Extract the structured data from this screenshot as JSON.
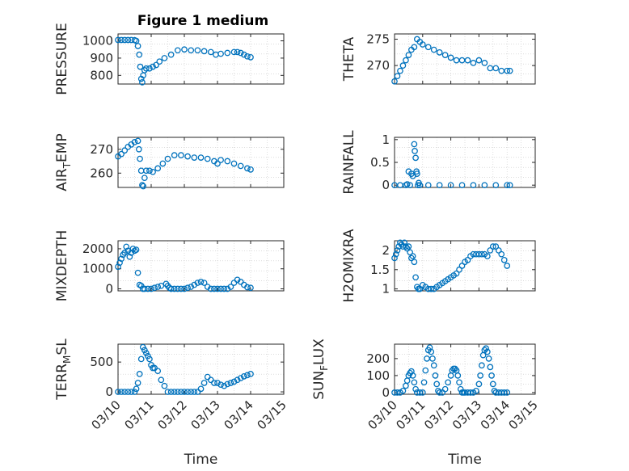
{
  "figure": {
    "title": "Figure 1 medium",
    "marker_color": "#0072bd",
    "axis_color": "#262626",
    "grid_color": "#c8c8c8"
  },
  "chart_data": [
    {
      "id": "pressure",
      "type": "scatter",
      "title": "Figure 1 medium",
      "ylabel": "PRESSURE",
      "ylabel_main": "PRESSURE",
      "ylabel_sub": "",
      "ylabel_tail": "",
      "xlabel": "",
      "xlim": [
        0,
        5
      ],
      "ylim": [
        750,
        1040
      ],
      "xticks": [
        0,
        1,
        2,
        3,
        4,
        5
      ],
      "xticklabels": [
        "",
        "",
        "",
        "",
        "",
        ""
      ],
      "yticks": [
        800,
        900,
        1000
      ],
      "yticklabels": [
        "800",
        "900",
        "1000"
      ],
      "grid": "minor-dotted",
      "marker": "open-circle",
      "series": [
        {
          "x": [
            0.0,
            0.1,
            0.2,
            0.3,
            0.4,
            0.5,
            0.55,
            0.6,
            0.64,
            0.67,
            0.7,
            0.73,
            0.76,
            0.8,
            0.85,
            0.95,
            1.05,
            1.15,
            1.25,
            1.4,
            1.6,
            1.8,
            2.0,
            2.2,
            2.4,
            2.6,
            2.8,
            2.95,
            3.1,
            3.3,
            3.5,
            3.6,
            3.7,
            3.8,
            3.9,
            4.0
          ],
          "y": [
            1005,
            1005,
            1005,
            1005,
            1005,
            1004,
            1000,
            970,
            920,
            850,
            780,
            760,
            800,
            830,
            840,
            840,
            850,
            860,
            880,
            900,
            920,
            945,
            950,
            945,
            945,
            940,
            935,
            920,
            925,
            930,
            935,
            935,
            930,
            920,
            910,
            905
          ]
        }
      ]
    },
    {
      "id": "theta",
      "type": "scatter",
      "ylabel": "THETA",
      "ylabel_main": "THETA",
      "ylabel_sub": "",
      "ylabel_tail": "",
      "xlabel": "",
      "xlim": [
        0,
        5
      ],
      "ylim": [
        266.5,
        276
      ],
      "xticks": [
        0,
        1,
        2,
        3,
        4,
        5
      ],
      "xticklabels": [
        "",
        "",
        "",
        "",
        "",
        ""
      ],
      "yticks": [
        270,
        275
      ],
      "yticklabels": [
        "270",
        "275"
      ],
      "grid": "minor-dotted",
      "marker": "open-circle",
      "series": [
        {
          "x": [
            0.0,
            0.1,
            0.2,
            0.3,
            0.4,
            0.5,
            0.6,
            0.7,
            0.8,
            0.9,
            1.0,
            1.2,
            1.4,
            1.6,
            1.8,
            2.0,
            2.2,
            2.4,
            2.6,
            2.8,
            3.0,
            3.2,
            3.4,
            3.6,
            3.8,
            4.0,
            4.1
          ],
          "y": [
            267,
            268,
            269,
            270,
            271,
            272,
            273,
            273.5,
            275,
            274.5,
            274,
            273.5,
            273,
            272.5,
            272,
            271.5,
            271,
            271,
            271,
            270.5,
            271,
            270.5,
            269.5,
            269.5,
            269,
            269,
            269
          ]
        }
      ]
    },
    {
      "id": "air_temp",
      "type": "scatter",
      "ylabel": "AIR_TEMP",
      "ylabel_main": "AIR",
      "ylabel_sub": "T",
      "ylabel_tail": "EMP",
      "xlabel": "",
      "xlim": [
        0,
        5
      ],
      "ylim": [
        254,
        275
      ],
      "xticks": [
        0,
        1,
        2,
        3,
        4,
        5
      ],
      "xticklabels": [
        "",
        "",
        "",
        "",
        "",
        ""
      ],
      "yticks": [
        260,
        270
      ],
      "yticklabels": [
        "260",
        "270"
      ],
      "grid": "minor-dotted",
      "marker": "open-circle",
      "series": [
        {
          "x": [
            0.0,
            0.1,
            0.2,
            0.3,
            0.4,
            0.5,
            0.6,
            0.63,
            0.66,
            0.7,
            0.73,
            0.76,
            0.8,
            0.85,
            0.95,
            1.05,
            1.2,
            1.35,
            1.5,
            1.7,
            1.9,
            2.1,
            2.3,
            2.5,
            2.7,
            2.9,
            3.0,
            3.1,
            3.3,
            3.5,
            3.7,
            3.9,
            4.0
          ],
          "y": [
            267,
            268,
            269.5,
            271,
            272,
            273,
            273.5,
            270,
            266,
            261,
            255,
            254.5,
            258,
            261,
            261,
            260.5,
            262,
            264,
            266,
            267.5,
            267.5,
            267,
            266.5,
            266.5,
            266,
            265,
            264,
            265.5,
            265,
            264,
            263,
            262,
            261.5
          ]
        }
      ]
    },
    {
      "id": "rainfall",
      "type": "scatter",
      "ylabel": "RAINFALL",
      "ylabel_main": "RAINFALL",
      "ylabel_sub": "",
      "ylabel_tail": "",
      "xlabel": "",
      "xlim": [
        0,
        5
      ],
      "ylim": [
        -0.05,
        1.05
      ],
      "xticks": [
        0,
        1,
        2,
        3,
        4,
        5
      ],
      "xticklabels": [
        "",
        "",
        "",
        "",
        "",
        ""
      ],
      "yticks": [
        0,
        0.5,
        1
      ],
      "yticklabels": [
        "0",
        "0.5",
        "1"
      ],
      "grid": "minor-dotted",
      "marker": "open-circle",
      "series": [
        {
          "x": [
            0.0,
            0.2,
            0.4,
            0.45,
            0.5,
            0.55,
            0.6,
            0.65,
            0.7,
            0.72,
            0.75,
            0.78,
            0.8,
            0.83,
            0.86,
            0.9,
            1.2,
            1.6,
            2.0,
            2.4,
            2.8,
            3.2,
            3.6,
            4.0,
            4.1
          ],
          "y": [
            0,
            0,
            0,
            0.02,
            0.3,
            0,
            0.25,
            0.2,
            0.9,
            0.75,
            0.6,
            0.3,
            0.25,
            0,
            0.05,
            0,
            0,
            0,
            0,
            0,
            0,
            0,
            0,
            0,
            0
          ]
        }
      ]
    },
    {
      "id": "mixdepth",
      "type": "scatter",
      "ylabel": "MIXDEPTH",
      "ylabel_main": "MIXDEPTH",
      "ylabel_sub": "",
      "ylabel_tail": "",
      "xlabel": "",
      "xlim": [
        0,
        5
      ],
      "ylim": [
        -100,
        2400
      ],
      "xticks": [
        0,
        1,
        2,
        3,
        4,
        5
      ],
      "xticklabels": [
        "",
        "",
        "",
        "",
        "",
        ""
      ],
      "yticks": [
        0,
        1000,
        2000
      ],
      "yticklabels": [
        "0",
        "1000",
        "2000"
      ],
      "grid": "minor-dotted",
      "marker": "open-circle",
      "series": [
        {
          "x": [
            0.0,
            0.05,
            0.1,
            0.15,
            0.2,
            0.25,
            0.3,
            0.35,
            0.4,
            0.45,
            0.5,
            0.55,
            0.6,
            0.65,
            0.7,
            0.75,
            0.8,
            0.9,
            1.0,
            1.1,
            1.2,
            1.3,
            1.45,
            1.5,
            1.55,
            1.6,
            1.7,
            1.8,
            1.9,
            2.0,
            2.1,
            2.2,
            2.3,
            2.4,
            2.5,
            2.6,
            2.7,
            2.8,
            2.9,
            3.0,
            3.1,
            3.2,
            3.3,
            3.4,
            3.5,
            3.6,
            3.7,
            3.8,
            3.9,
            4.0
          ],
          "y": [
            1100,
            1300,
            1500,
            1700,
            1800,
            2100,
            1900,
            1600,
            1800,
            2000,
            1900,
            1950,
            800,
            200,
            150,
            0,
            0,
            0,
            0,
            50,
            100,
            150,
            250,
            150,
            50,
            0,
            0,
            0,
            0,
            0,
            50,
            100,
            200,
            300,
            350,
            300,
            100,
            0,
            0,
            0,
            0,
            0,
            0,
            100,
            300,
            450,
            350,
            200,
            80,
            50
          ]
        }
      ]
    },
    {
      "id": "h2omixra",
      "type": "scatter",
      "ylabel": "H2OMIXRA",
      "ylabel_main": "H2OMIXRA",
      "ylabel_sub": "",
      "ylabel_tail": "",
      "xlabel": "",
      "xlim": [
        0,
        5
      ],
      "ylim": [
        0.95,
        2.25
      ],
      "xticks": [
        0,
        1,
        2,
        3,
        4,
        5
      ],
      "xticklabels": [
        "",
        "",
        "",
        "",
        "",
        ""
      ],
      "yticks": [
        1,
        1.5,
        2
      ],
      "yticklabels": [
        "1",
        "1.5",
        "2"
      ],
      "grid": "minor-dotted",
      "marker": "open-circle",
      "series": [
        {
          "x": [
            0.0,
            0.05,
            0.1,
            0.15,
            0.2,
            0.25,
            0.3,
            0.35,
            0.4,
            0.45,
            0.5,
            0.55,
            0.6,
            0.65,
            0.7,
            0.75,
            0.8,
            0.85,
            0.9,
            1.0,
            1.1,
            1.2,
            1.3,
            1.4,
            1.5,
            1.6,
            1.7,
            1.8,
            1.9,
            2.0,
            2.1,
            2.2,
            2.3,
            2.4,
            2.5,
            2.6,
            2.7,
            2.8,
            2.9,
            3.0,
            3.1,
            3.2,
            3.3,
            3.4,
            3.5,
            3.6,
            3.7,
            3.8,
            3.9,
            4.0
          ],
          "y": [
            1.8,
            1.9,
            2.0,
            2.1,
            2.2,
            2.15,
            2.1,
            2.2,
            2.1,
            2.05,
            2.1,
            1.95,
            1.8,
            1.85,
            1.7,
            1.3,
            1.05,
            1.0,
            1.0,
            1.1,
            1.05,
            1.0,
            1.0,
            1.0,
            1.05,
            1.1,
            1.15,
            1.2,
            1.25,
            1.3,
            1.35,
            1.4,
            1.5,
            1.6,
            1.7,
            1.75,
            1.85,
            1.9,
            1.9,
            1.9,
            1.9,
            1.9,
            1.85,
            2.0,
            2.1,
            2.1,
            2.0,
            1.9,
            1.75,
            1.6
          ]
        }
      ]
    },
    {
      "id": "terr_msl",
      "type": "scatter",
      "ylabel": "TERR_MSL",
      "ylabel_main": "TERR",
      "ylabel_sub": "M",
      "ylabel_tail": "SL",
      "xlabel": "Time",
      "xlim": [
        0,
        5
      ],
      "ylim": [
        -40,
        800
      ],
      "xticks": [
        0,
        1,
        2,
        3,
        4,
        5
      ],
      "xticklabels": [
        "03/10",
        "03/11",
        "03/12",
        "03/13",
        "03/14",
        "03/15"
      ],
      "yticks": [
        0,
        500
      ],
      "yticklabels": [
        "0",
        "500"
      ],
      "grid": "minor-dotted",
      "marker": "open-circle",
      "series": [
        {
          "x": [
            0.0,
            0.1,
            0.2,
            0.3,
            0.4,
            0.5,
            0.55,
            0.6,
            0.65,
            0.7,
            0.75,
            0.8,
            0.85,
            0.9,
            0.95,
            1.0,
            1.05,
            1.1,
            1.2,
            1.3,
            1.4,
            1.5,
            1.6,
            1.7,
            1.8,
            1.9,
            2.0,
            2.1,
            2.2,
            2.3,
            2.4,
            2.5,
            2.6,
            2.7,
            2.8,
            2.9,
            3.0,
            3.1,
            3.2,
            3.3,
            3.4,
            3.5,
            3.6,
            3.7,
            3.8,
            3.9,
            4.0
          ],
          "y": [
            0,
            0,
            0,
            0,
            0,
            0,
            50,
            150,
            300,
            550,
            750,
            700,
            650,
            600,
            550,
            450,
            400,
            400,
            350,
            200,
            100,
            0,
            0,
            0,
            0,
            0,
            0,
            0,
            0,
            0,
            0,
            50,
            150,
            250,
            200,
            150,
            150,
            120,
            100,
            130,
            150,
            170,
            200,
            230,
            260,
            280,
            300
          ]
        }
      ]
    },
    {
      "id": "sun_flux",
      "type": "scatter",
      "ylabel": "SUN_FLUX",
      "ylabel_main": "SUN",
      "ylabel_sub": "F",
      "ylabel_tail": "LUX",
      "xlabel": "Time",
      "xlim": [
        0,
        5
      ],
      "ylim": [
        -10,
        285
      ],
      "xticks": [
        0,
        1,
        2,
        3,
        4,
        5
      ],
      "xticklabels": [
        "03/10",
        "03/11",
        "03/12",
        "03/13",
        "03/14",
        "03/15"
      ],
      "yticks": [
        0,
        100,
        200
      ],
      "yticklabels": [
        "0",
        "100",
        "200"
      ],
      "grid": "minor-dotted",
      "marker": "open-circle",
      "series": [
        {
          "x": [
            0.0,
            0.1,
            0.2,
            0.3,
            0.4,
            0.45,
            0.5,
            0.55,
            0.6,
            0.65,
            0.7,
            0.75,
            0.8,
            0.9,
            1.0,
            1.05,
            1.1,
            1.15,
            1.2,
            1.25,
            1.3,
            1.35,
            1.4,
            1.45,
            1.5,
            1.55,
            1.6,
            1.7,
            1.8,
            1.9,
            2.0,
            2.05,
            2.1,
            2.15,
            2.2,
            2.25,
            2.3,
            2.35,
            2.4,
            2.45,
            2.5,
            2.6,
            2.7,
            2.8,
            2.9,
            3.0,
            3.05,
            3.1,
            3.15,
            3.2,
            3.25,
            3.3,
            3.35,
            3.4,
            3.45,
            3.5,
            3.55,
            3.6,
            3.7,
            3.8,
            3.9,
            4.0
          ],
          "y": [
            0,
            0,
            0,
            10,
            40,
            70,
            100,
            115,
            125,
            100,
            60,
            20,
            0,
            0,
            0,
            60,
            130,
            200,
            250,
            265,
            240,
            200,
            160,
            100,
            50,
            10,
            0,
            0,
            20,
            60,
            100,
            130,
            140,
            140,
            130,
            100,
            60,
            20,
            0,
            0,
            0,
            0,
            0,
            0,
            10,
            50,
            100,
            160,
            220,
            250,
            260,
            240,
            200,
            150,
            100,
            50,
            10,
            0,
            0,
            0,
            0,
            0
          ]
        }
      ]
    }
  ]
}
